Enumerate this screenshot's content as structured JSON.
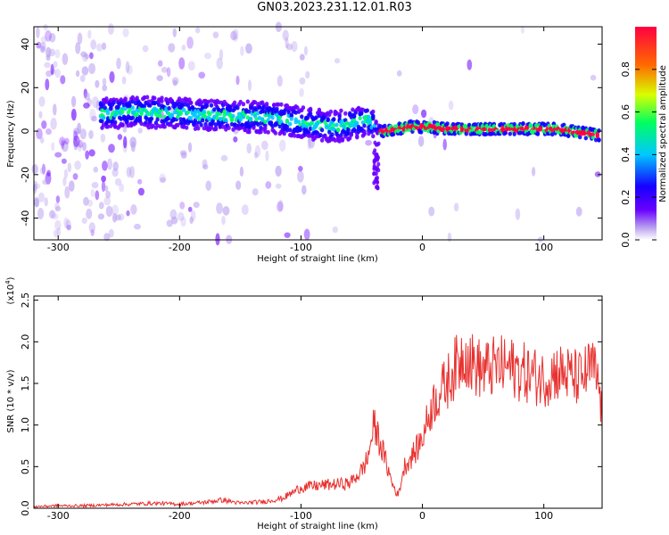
{
  "title": "GN03.2023.231.12.01.R03",
  "colors": {
    "snr_line": "#e8312f",
    "axis": "#000000",
    "colormap": [
      "#ffffff",
      "#b79cf0",
      "#6a00ff",
      "#1600ff",
      "#00c8ff",
      "#00ff60",
      "#d8ff00",
      "#ff6a00",
      "#ff0040"
    ]
  },
  "chart_data": [
    {
      "type": "heatmap",
      "name": "spectrogram",
      "xlabel": "Height of straight line (km)",
      "ylabel": "Frequency (Hz)",
      "xlim": [
        -320,
        148
      ],
      "ylim": [
        -50,
        48
      ],
      "xticks": [
        -300,
        -200,
        -100,
        0,
        100
      ],
      "yticks": [
        -40,
        -20,
        0,
        20,
        40
      ],
      "ridge": {
        "x": [
          -260,
          -240,
          -200,
          -160,
          -120,
          -90,
          -70,
          -55,
          -45,
          -40,
          -35,
          -30,
          -10,
          0,
          20,
          50,
          80,
          110,
          148
        ],
        "y": [
          8,
          9,
          8,
          7,
          6,
          3,
          2,
          4,
          5,
          3,
          0,
          0,
          2,
          2,
          1,
          1,
          1,
          1,
          -2
        ]
      },
      "colorbar": {
        "label": "Normalized spectral amplitude",
        "range": [
          0.0,
          1.0
        ],
        "ticks": [
          "0.0",
          "0.2",
          "0.4",
          "0.6",
          "0.8"
        ]
      }
    },
    {
      "type": "line",
      "name": "snr",
      "xlabel": "Height of straight line (km)",
      "ylabel": "SNR (10 * v/v)",
      "y_multiplier": "(x10^4)",
      "y_multiplier_base": "(x10",
      "y_multiplier_exp": "4",
      "y_multiplier_close": ")",
      "xlim": [
        -320,
        148
      ],
      "ylim": [
        0,
        2.55
      ],
      "xticks": [
        -300,
        -200,
        -100,
        0,
        100
      ],
      "yticks": [
        "0.0",
        "0.5",
        "1.0",
        "1.5",
        "2.0",
        "2.5"
      ],
      "x": [
        -320,
        -300,
        -280,
        -260,
        -240,
        -220,
        -200,
        -180,
        -165,
        -150,
        -130,
        -115,
        -100,
        -80,
        -60,
        -50,
        -45,
        -40,
        -35,
        -30,
        -25,
        -20,
        -15,
        -10,
        -5,
        0,
        5,
        10,
        20,
        25,
        30,
        35,
        40,
        50,
        60,
        70,
        80,
        90,
        100,
        110,
        120,
        130,
        140,
        145,
        148
      ],
      "y": [
        0.02,
        0.03,
        0.03,
        0.04,
        0.05,
        0.06,
        0.05,
        0.07,
        0.1,
        0.06,
        0.08,
        0.12,
        0.25,
        0.28,
        0.3,
        0.45,
        0.6,
        1.0,
        0.8,
        0.55,
        0.3,
        0.15,
        0.5,
        0.6,
        0.7,
        0.85,
        1.1,
        1.3,
        1.5,
        1.65,
        1.75,
        1.9,
        1.75,
        1.65,
        1.7,
        1.7,
        1.65,
        1.6,
        1.55,
        1.65,
        1.6,
        1.55,
        1.7,
        1.5,
        1.1
      ]
    }
  ]
}
